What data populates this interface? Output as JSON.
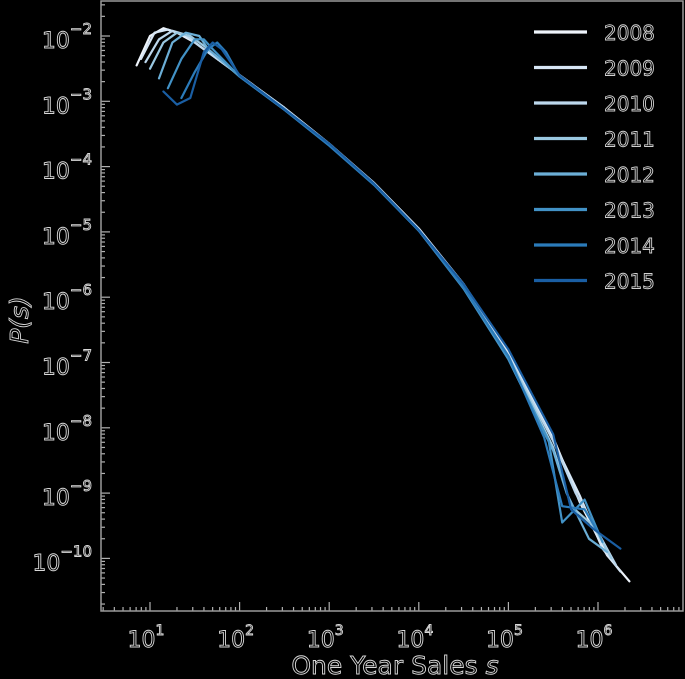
{
  "chart_data": {
    "type": "line",
    "title": "",
    "xlabel": "One Year Sales s",
    "ylabel": "P(s)",
    "xscale": "log",
    "yscale": "log",
    "xlim": [
      2.8,
      9000000
    ],
    "ylim": [
      1e-11,
      0.035
    ],
    "grid": false,
    "legend_position": "upper right",
    "x_ticks": [
      {
        "exp": "1"
      },
      {
        "exp": "2"
      },
      {
        "exp": "3"
      },
      {
        "exp": "4"
      },
      {
        "exp": "5"
      },
      {
        "exp": "6"
      }
    ],
    "y_ticks": [
      {
        "exp": "−2"
      },
      {
        "exp": "−3"
      },
      {
        "exp": "−4"
      },
      {
        "exp": "−5"
      },
      {
        "exp": "−6"
      },
      {
        "exp": "−7"
      },
      {
        "exp": "−8"
      },
      {
        "exp": "−9"
      },
      {
        "exp": "−10"
      }
    ],
    "tick_base": "10",
    "series": [
      {
        "name": "2008",
        "color": "#eef4fb",
        "log_x": [
          0.85,
          1.0,
          1.15,
          1.3,
          1.5,
          2.0,
          2.5,
          3.0,
          3.5,
          4.0,
          4.5,
          5.0,
          5.5,
          5.8,
          6.1,
          6.35
        ],
        "log_y": [
          -2.45,
          -2.0,
          -1.88,
          -1.95,
          -2.1,
          -2.6,
          -3.1,
          -3.65,
          -4.25,
          -4.95,
          -5.8,
          -6.85,
          -8.15,
          -9.15,
          -9.95,
          -10.35
        ]
      },
      {
        "name": "2009",
        "color": "#d7e6f5",
        "log_x": [
          0.9,
          1.05,
          1.2,
          1.35,
          1.5,
          2.0,
          2.5,
          3.0,
          3.5,
          4.0,
          4.5,
          5.0,
          5.5,
          5.8,
          6.05,
          6.25
        ],
        "log_y": [
          -2.35,
          -1.95,
          -1.9,
          -1.97,
          -2.1,
          -2.6,
          -3.1,
          -3.65,
          -4.25,
          -4.95,
          -5.8,
          -6.85,
          -8.2,
          -9.05,
          -9.85,
          -10.2
        ]
      },
      {
        "name": "2010",
        "color": "#bcd7ec",
        "log_x": [
          0.95,
          1.1,
          1.25,
          1.4,
          1.55,
          2.0,
          2.5,
          3.0,
          3.5,
          4.0,
          4.5,
          5.0,
          5.5,
          5.75,
          6.0,
          6.2
        ],
        "log_y": [
          -2.4,
          -2.05,
          -1.92,
          -1.98,
          -2.15,
          -2.6,
          -3.1,
          -3.67,
          -4.25,
          -4.97,
          -5.82,
          -6.9,
          -8.2,
          -9.0,
          -9.6,
          -10.1
        ]
      },
      {
        "name": "2011",
        "color": "#9ac8e1",
        "log_x": [
          1.0,
          1.15,
          1.3,
          1.45,
          1.6,
          2.0,
          2.5,
          3.0,
          3.5,
          4.0,
          4.5,
          5.0,
          5.5,
          5.7,
          5.95,
          6.15
        ],
        "log_y": [
          -2.5,
          -2.1,
          -1.95,
          -2.0,
          -2.15,
          -2.6,
          -3.12,
          -3.65,
          -4.27,
          -4.97,
          -5.85,
          -6.9,
          -8.3,
          -9.2,
          -9.5,
          -10.0
        ]
      },
      {
        "name": "2012",
        "color": "#6baed6",
        "log_x": [
          1.1,
          1.25,
          1.4,
          1.55,
          1.65,
          2.0,
          2.5,
          3.0,
          3.5,
          4.0,
          4.5,
          5.0,
          5.5,
          5.65,
          5.9,
          6.1
        ],
        "log_y": [
          -2.65,
          -2.1,
          -1.95,
          -2.0,
          -2.2,
          -2.62,
          -3.12,
          -3.67,
          -4.27,
          -4.98,
          -5.85,
          -6.95,
          -8.35,
          -9.0,
          -9.7,
          -9.9
        ]
      },
      {
        "name": "2013",
        "color": "#4292c6",
        "log_x": [
          1.2,
          1.35,
          1.5,
          1.6,
          1.7,
          2.0,
          2.5,
          3.0,
          3.5,
          4.0,
          4.5,
          5.0,
          5.45,
          5.6,
          5.85,
          6.05
        ],
        "log_y": [
          -2.8,
          -2.35,
          -2.05,
          -2.05,
          -2.2,
          -2.62,
          -3.13,
          -3.67,
          -4.27,
          -4.98,
          -5.87,
          -6.95,
          -8.2,
          -9.45,
          -9.1,
          -9.75
        ]
      },
      {
        "name": "2014",
        "color": "#2b7bba",
        "log_x": [
          1.35,
          1.5,
          1.65,
          1.75,
          1.85,
          2.0,
          2.5,
          3.0,
          3.5,
          4.0,
          4.5,
          5.0,
          5.4,
          5.6,
          5.85,
          6.0
        ],
        "log_y": [
          -2.95,
          -2.55,
          -2.2,
          -2.1,
          -2.25,
          -2.62,
          -3.13,
          -3.68,
          -4.28,
          -4.98,
          -5.85,
          -6.9,
          -8.15,
          -9.2,
          -9.25,
          -9.6
        ]
      },
      {
        "name": "2015",
        "color": "#1a5ea3",
        "log_x": [
          1.15,
          1.3,
          1.45,
          1.6,
          1.7,
          1.8,
          2.0,
          2.5,
          3.0,
          3.5,
          4.0,
          4.5,
          5.0,
          5.5,
          5.7,
          5.95,
          6.25
        ],
        "log_y": [
          -2.85,
          -3.05,
          -2.95,
          -2.25,
          -2.1,
          -2.2,
          -2.6,
          -3.12,
          -3.65,
          -4.26,
          -4.97,
          -5.8,
          -6.8,
          -8.1,
          -9.25,
          -9.55,
          -9.85
        ]
      }
    ]
  },
  "legend": {
    "items": [
      {
        "label": "2008"
      },
      {
        "label": "2009"
      },
      {
        "label": "2010"
      },
      {
        "label": "2011"
      },
      {
        "label": "2012"
      },
      {
        "label": "2013"
      },
      {
        "label": "2014"
      },
      {
        "label": "2015"
      }
    ]
  },
  "axes": {
    "xlabel_text": "One Year Sales ",
    "xlabel_var": "s",
    "ylabel_text": "P(s)",
    "frame_color": "#9a9a9a"
  }
}
